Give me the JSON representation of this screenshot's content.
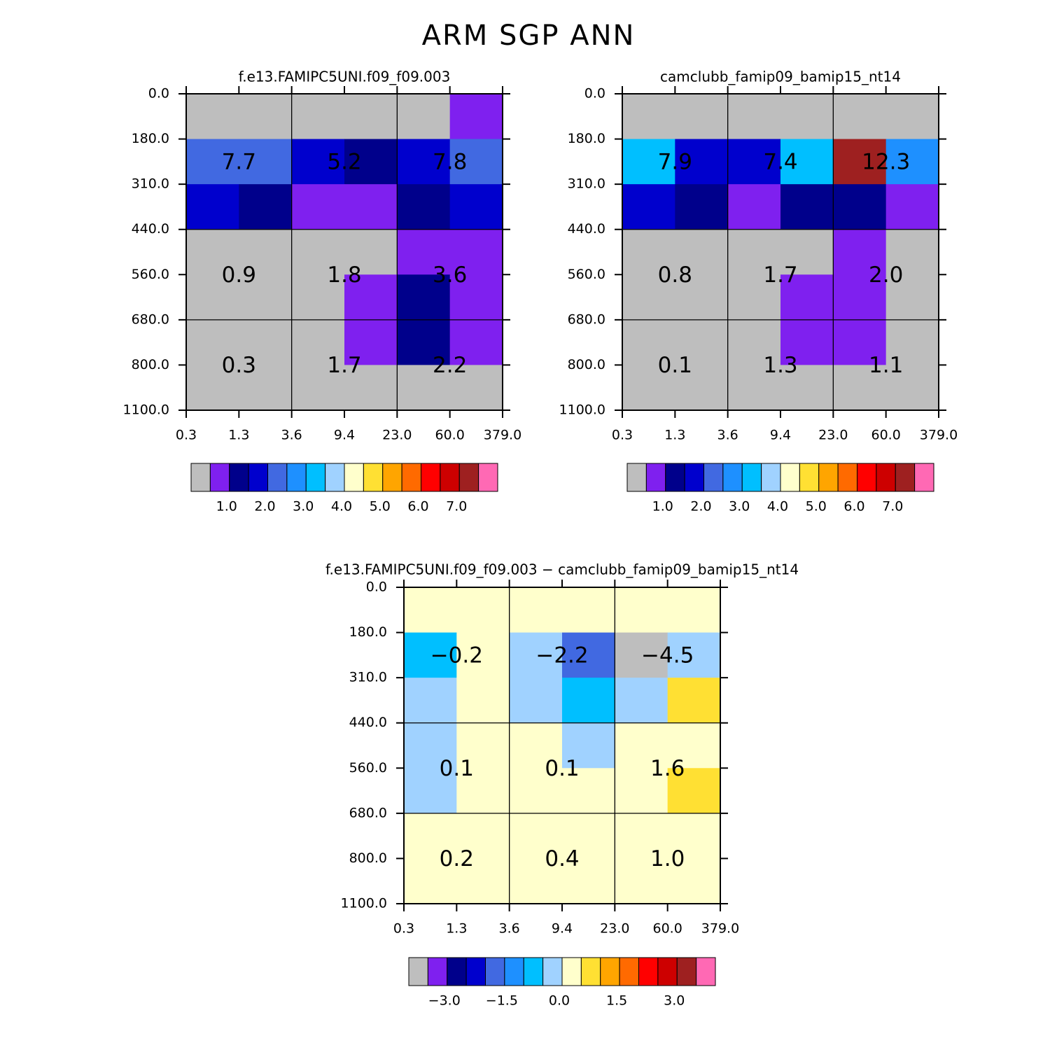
{
  "page_title": "ARM SGP ANN",
  "colors": {
    "palette": [
      "#bebebe",
      "#7f20ef",
      "#00008b",
      "#0000cd",
      "#4169e1",
      "#1e90ff",
      "#00bfff",
      "#a0d2ff",
      "#ffffcc",
      "#ffe033",
      "#ffa500",
      "#ff6a00",
      "#ff0000",
      "#cd0000",
      "#9e2020",
      "#ff69b4"
    ],
    "text": "#000000"
  },
  "chart_data": [
    {
      "type": "heatmap",
      "title": "f.e13.FAMIPC5UNI.f09_f09.003",
      "y_tick_labels": [
        "0.0",
        "180.0",
        "310.0",
        "440.0",
        "560.0",
        "680.0",
        "800.0",
        "1100.0"
      ],
      "x_tick_labels": [
        "0.3",
        "1.3",
        "3.6",
        "9.4",
        "23.0",
        "60.0",
        "379.0"
      ],
      "color_index_grid": [
        [
          0,
          0,
          0,
          0,
          0,
          1
        ],
        [
          4,
          4,
          3,
          2,
          3,
          4
        ],
        [
          3,
          2,
          1,
          1,
          2,
          3
        ],
        [
          0,
          0,
          0,
          0,
          1,
          1
        ],
        [
          0,
          0,
          0,
          1,
          2,
          1
        ],
        [
          0,
          0,
          0,
          1,
          2,
          1
        ],
        [
          0,
          0,
          0,
          0,
          0,
          0
        ]
      ],
      "group_values": [
        [
          "7.7",
          "5.2",
          "7.8"
        ],
        [
          "0.9",
          "1.8",
          "3.6"
        ],
        [
          "0.3",
          "1.7",
          "2.2"
        ]
      ],
      "colorbar": {
        "labels": [
          "1.0",
          "2.0",
          "3.0",
          "4.0",
          "5.0",
          "6.0",
          "7.0"
        ],
        "bins": 16
      }
    },
    {
      "type": "heatmap",
      "title": "camclubb_famip09_bamip15_nt14",
      "y_tick_labels": [
        "0.0",
        "180.0",
        "310.0",
        "440.0",
        "560.0",
        "680.0",
        "800.0",
        "1100.0"
      ],
      "x_tick_labels": [
        "0.3",
        "1.3",
        "3.6",
        "9.4",
        "23.0",
        "60.0",
        "379.0"
      ],
      "color_index_grid": [
        [
          0,
          0,
          0,
          0,
          0,
          0
        ],
        [
          6,
          3,
          3,
          6,
          14,
          5
        ],
        [
          3,
          2,
          1,
          2,
          2,
          1
        ],
        [
          0,
          0,
          0,
          0,
          1,
          0
        ],
        [
          0,
          0,
          0,
          1,
          1,
          0
        ],
        [
          0,
          0,
          0,
          1,
          1,
          0
        ],
        [
          0,
          0,
          0,
          0,
          0,
          0
        ]
      ],
      "group_values": [
        [
          "7.9",
          "7.4",
          "12.3"
        ],
        [
          "0.8",
          "1.7",
          "2.0"
        ],
        [
          "0.1",
          "1.3",
          "1.1"
        ]
      ],
      "colorbar": {
        "labels": [
          "1.0",
          "2.0",
          "3.0",
          "4.0",
          "5.0",
          "6.0",
          "7.0"
        ],
        "bins": 16
      }
    },
    {
      "type": "heatmap",
      "title": "f.e13.FAMIPC5UNI.f09_f09.003 − camclubb_famip09_bamip15_nt14",
      "y_tick_labels": [
        "0.0",
        "180.0",
        "310.0",
        "440.0",
        "560.0",
        "680.0",
        "800.0",
        "1100.0"
      ],
      "x_tick_labels": [
        "0.3",
        "1.3",
        "3.6",
        "9.4",
        "23.0",
        "60.0",
        "379.0"
      ],
      "color_index_grid": [
        [
          8,
          8,
          8,
          8,
          8,
          8
        ],
        [
          6,
          8,
          7,
          4,
          0,
          7
        ],
        [
          7,
          8,
          7,
          6,
          7,
          9
        ],
        [
          7,
          8,
          8,
          7,
          8,
          8
        ],
        [
          7,
          8,
          8,
          8,
          8,
          9
        ],
        [
          8,
          8,
          8,
          8,
          8,
          8
        ],
        [
          8,
          8,
          8,
          8,
          8,
          8
        ]
      ],
      "group_values": [
        [
          "−0.2",
          "−2.2",
          "−4.5"
        ],
        [
          "0.1",
          "0.1",
          "1.6"
        ],
        [
          "0.2",
          "0.4",
          "1.0"
        ]
      ],
      "colorbar": {
        "labels": [
          "−3.0",
          "−1.5",
          "0.0",
          "1.5",
          "3.0"
        ],
        "bins": 16
      }
    }
  ]
}
